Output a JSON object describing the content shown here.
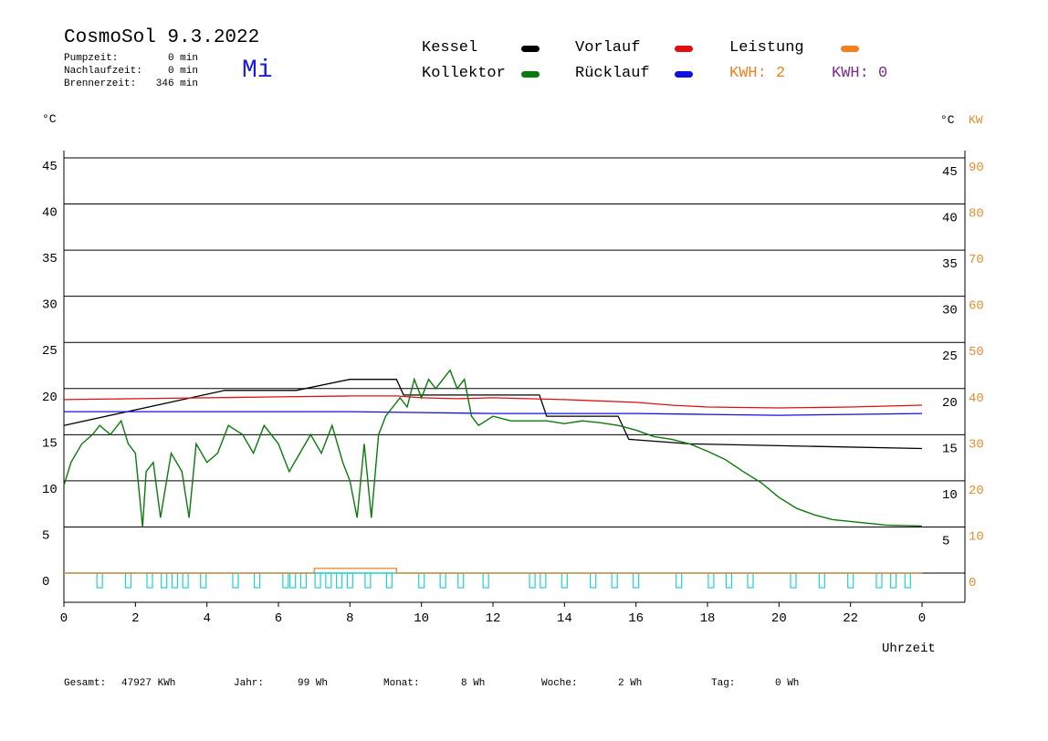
{
  "header": {
    "title": "CosmoSol 9.3.2022",
    "day": "Mi",
    "stats": [
      {
        "label": "Pumpzeit:",
        "value": "0 min"
      },
      {
        "label": "Nachlaufzeit:",
        "value": "0 min"
      },
      {
        "label": "Brennerzeit:",
        "value": "346 min"
      }
    ]
  },
  "legend": {
    "kessel": "Kessel",
    "kollektor": "Kollektor",
    "vorlauf": "Vorlauf",
    "ruecklauf": "Rücklauf",
    "leistung": "Leistung",
    "kwh1": "KWH: 2",
    "kwh2": "KWH: 0"
  },
  "colors": {
    "kessel": "#000000",
    "kollektor": "#0a7a0a",
    "vorlauf": "#e01010",
    "ruecklauf": "#1010e0",
    "leistung": "#f08020",
    "kwh2": "#7a2a8a",
    "pump": "#20d0d0"
  },
  "footer": {
    "gesamt_label": "Gesamt:",
    "gesamt_value": "47927 KWh",
    "jahr_label": "Jahr:",
    "jahr_value": "99 Wh",
    "monat_label": "Monat:",
    "monat_value": "8 Wh",
    "woche_label": "Woche:",
    "woche_value": "2 Wh",
    "tag_label": "Tag:",
    "tag_value": "0 Wh"
  },
  "chart_data": {
    "type": "line",
    "xlabel": "Uhrzeit",
    "ylabel_left": "°C",
    "ylabel_right": "°C",
    "ylabel_right2": "KW",
    "xlim": [
      0,
      24
    ],
    "ylim": [
      0,
      45
    ],
    "x_ticks": [
      "0",
      "2",
      "4",
      "6",
      "8",
      "10",
      "12",
      "14",
      "16",
      "18",
      "20",
      "22",
      "0"
    ],
    "y_ticks_left": [
      0,
      5,
      10,
      15,
      20,
      25,
      30,
      35,
      40,
      45
    ],
    "y_ticks_right": [
      5,
      10,
      15,
      20,
      25,
      30,
      35,
      40,
      45
    ],
    "y_ticks_kw": [
      0,
      10,
      20,
      30,
      40,
      50,
      60,
      70,
      80,
      90
    ],
    "grid": true,
    "series": [
      {
        "name": "Kessel",
        "color": "#000000",
        "x": [
          0,
          4.5,
          6.5,
          8,
          9.3,
          9.5,
          11,
          12,
          13.3,
          13.5,
          15.5,
          15.8,
          17.5,
          24
        ],
        "y": [
          16,
          19.8,
          19.8,
          21,
          21,
          19.3,
          19.3,
          19.3,
          19.3,
          17,
          17,
          14.5,
          14,
          13.5
        ]
      },
      {
        "name": "Vorlauf",
        "color": "#e01010",
        "x": [
          0,
          2,
          4,
          6,
          8,
          9.3,
          10,
          11,
          12,
          14,
          16,
          17,
          18,
          20,
          22,
          24
        ],
        "y": [
          18.8,
          18.9,
          19,
          19.1,
          19.2,
          19.2,
          19,
          18.9,
          19,
          18.8,
          18.5,
          18.2,
          18,
          17.9,
          18,
          18.2
        ]
      },
      {
        "name": "Rücklauf",
        "color": "#1010e0",
        "x": [
          0,
          4,
          8,
          10,
          12,
          14,
          16,
          18,
          20,
          22,
          24
        ],
        "y": [
          17.5,
          17.5,
          17.5,
          17.4,
          17.3,
          17.3,
          17.3,
          17.2,
          17.1,
          17.2,
          17.3
        ]
      },
      {
        "name": "Kollektor",
        "color": "#0a7a0a",
        "x": [
          0,
          0.2,
          0.5,
          0.8,
          1,
          1.3,
          1.6,
          1.8,
          2,
          2.2,
          2.3,
          2.5,
          2.7,
          3,
          3.3,
          3.5,
          3.7,
          4,
          4.3,
          4.6,
          5,
          5.3,
          5.6,
          6,
          6.3,
          6.6,
          6.9,
          7.2,
          7.5,
          7.8,
          8,
          8.2,
          8.4,
          8.6,
          8.8,
          9,
          9.2,
          9.4,
          9.6,
          9.8,
          10,
          10.2,
          10.4,
          10.6,
          10.8,
          11,
          11.2,
          11.4,
          11.6,
          12,
          12.5,
          13,
          13.5,
          14,
          14.5,
          15,
          15.5,
          16,
          16.5,
          17,
          17.5,
          18,
          18.5,
          19,
          19.5,
          20,
          20.5,
          21,
          21.5,
          22,
          22.5,
          23,
          24
        ],
        "y": [
          9.5,
          12,
          14,
          15,
          16,
          15,
          16.5,
          14,
          13,
          5,
          11,
          12,
          6,
          13,
          11,
          6,
          14,
          12,
          13,
          16,
          15,
          13,
          16,
          14,
          11,
          13,
          15,
          13,
          16,
          12,
          10,
          6,
          14,
          6,
          15,
          17,
          18,
          19,
          18,
          21,
          19,
          21,
          20,
          21,
          22,
          20,
          21,
          17,
          16,
          17,
          16.5,
          16.5,
          16.5,
          16.2,
          16.5,
          16.3,
          16,
          15.5,
          14.8,
          14.5,
          14,
          13.2,
          12.3,
          11,
          9.8,
          8.2,
          7,
          6.3,
          5.8,
          5.6,
          5.4,
          5.2,
          5.1
        ]
      },
      {
        "name": "Leistung",
        "color": "#f08020",
        "x": [
          0,
          7,
          7,
          9.3,
          9.3,
          24
        ],
        "y": [
          0,
          0,
          0.5,
          0.5,
          0,
          0
        ]
      }
    ],
    "pump_pulses_hours": [
      1,
      1.8,
      2.4,
      2.8,
      3.1,
      3.4,
      3.9,
      4.8,
      5.4,
      6.2,
      6.4,
      6.7,
      7.1,
      7.4,
      7.7,
      8,
      8.5,
      9.1,
      10,
      10.6,
      11.1,
      11.8,
      13.1,
      13.4,
      14,
      14.8,
      15.4,
      16,
      17.2,
      18.1,
      18.6,
      19.2,
      20.4,
      21.2,
      22,
      22.8,
      23.2,
      23.6
    ]
  }
}
